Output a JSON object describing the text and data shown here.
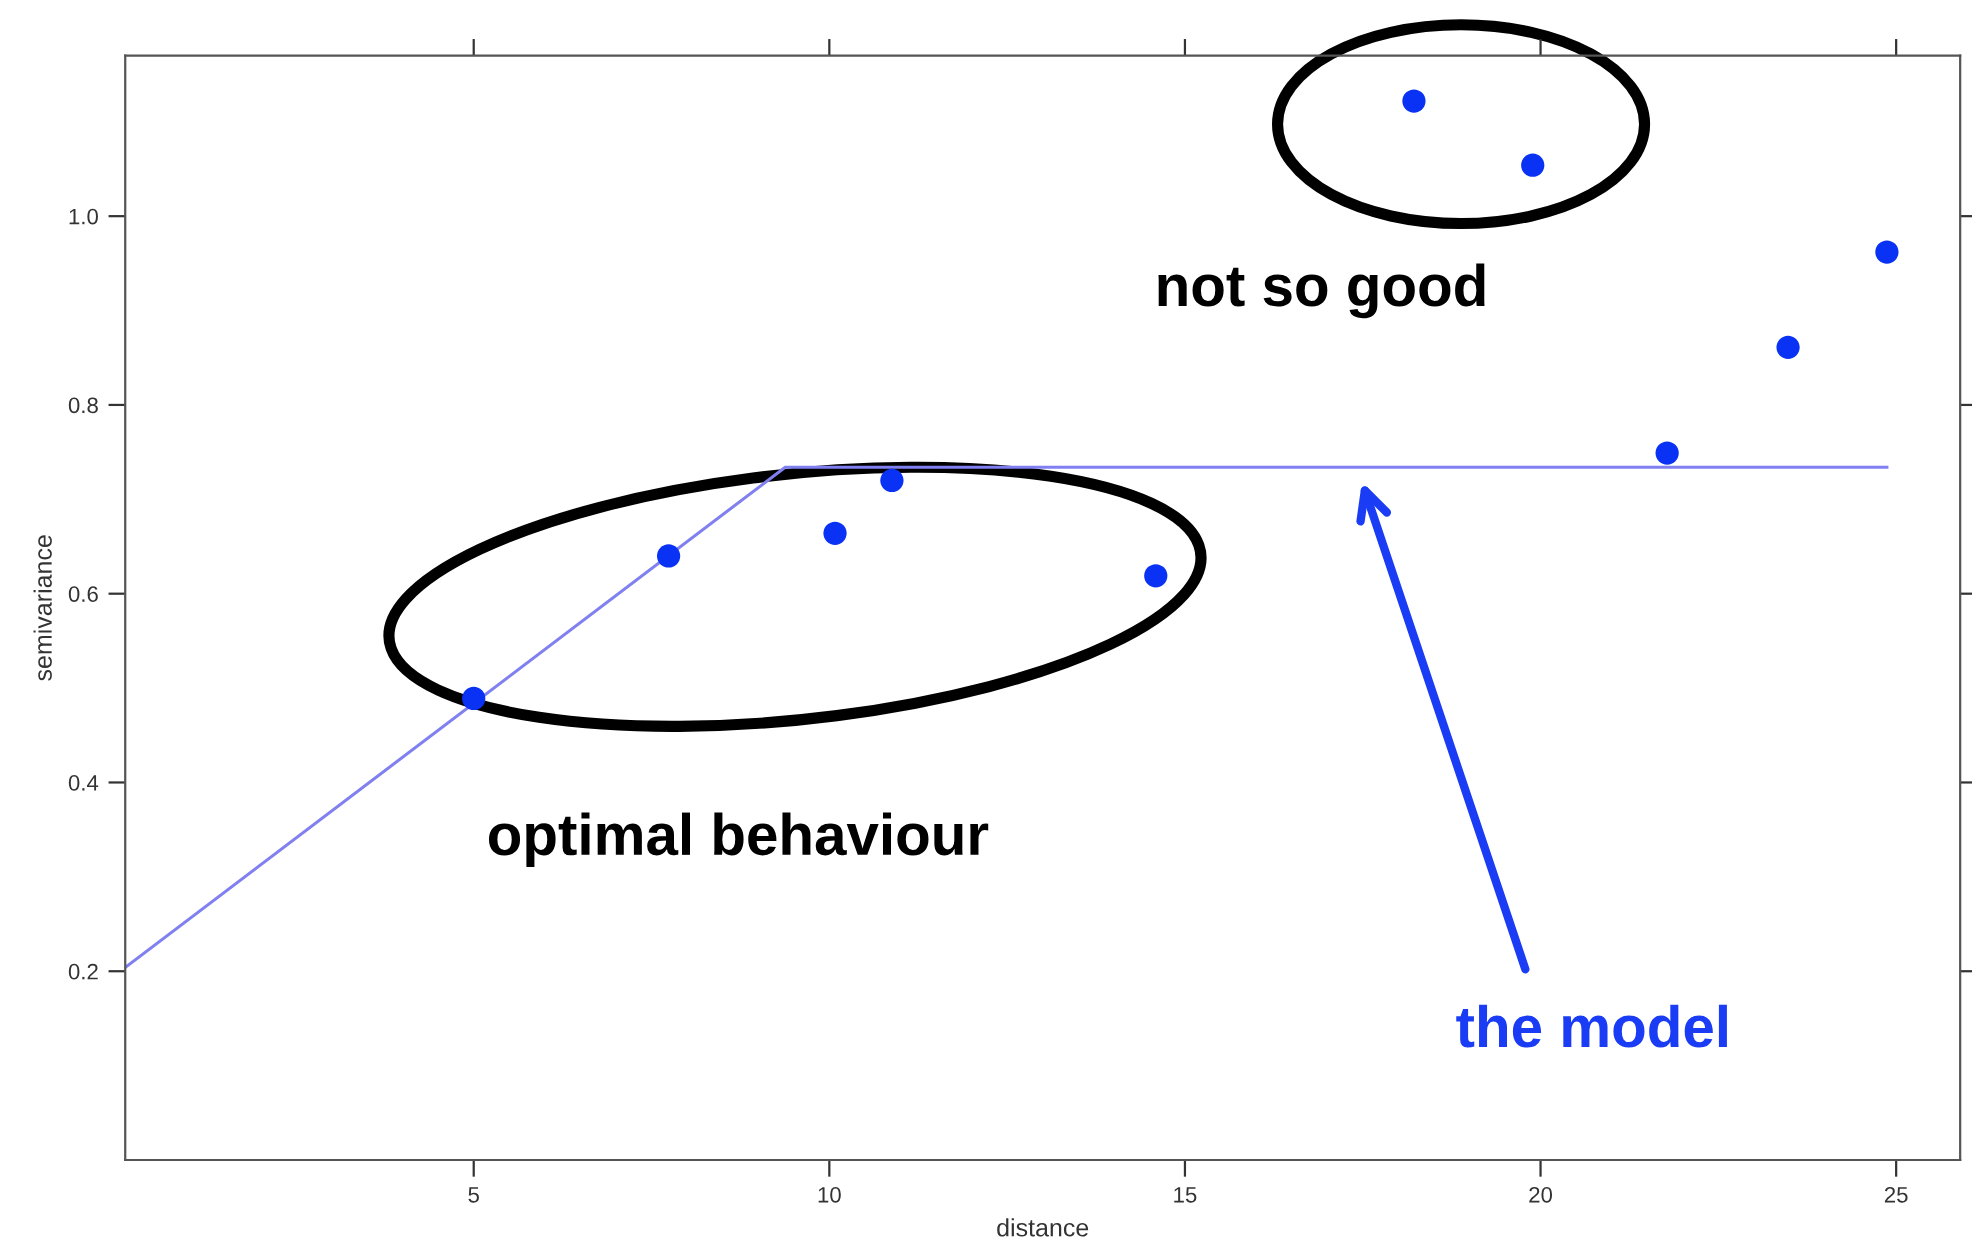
{
  "chart_data": {
    "type": "scatter",
    "xlabel": "distance",
    "ylabel": "semivariance",
    "xlim": [
      0.1,
      25.9
    ],
    "ylim": [
      0,
      1.17
    ],
    "xticks": [
      5,
      10,
      15,
      20,
      25
    ],
    "yticks": [
      0.2,
      0.4,
      0.6,
      {
        "value": 0.8,
        "label": "0.8"
      },
      {
        "value": 1,
        "label": "1.0"
      }
    ],
    "grid": false,
    "legend": false,
    "marker": "circle",
    "series": [
      {
        "color": "#0a32f5",
        "x": [
          5.0,
          7.74,
          10.08,
          10.88,
          14.59,
          18.22,
          19.89,
          21.78,
          23.48,
          24.87
        ],
        "values": [
          0.489,
          0.64,
          0.664,
          0.72,
          0.619,
          1.122,
          1.054,
          0.749,
          0.861,
          0.962
        ]
      },
      {
        "type": "line",
        "color": "#8080f0",
        "marker": "none",
        "x": [
          0.1,
          9.38,
          24.87
        ],
        "values": [
          0.204,
          0.734,
          0.734
        ]
      }
    ],
    "annotations": [
      "optimal behaviour",
      "not so good",
      "the model"
    ]
  }
}
